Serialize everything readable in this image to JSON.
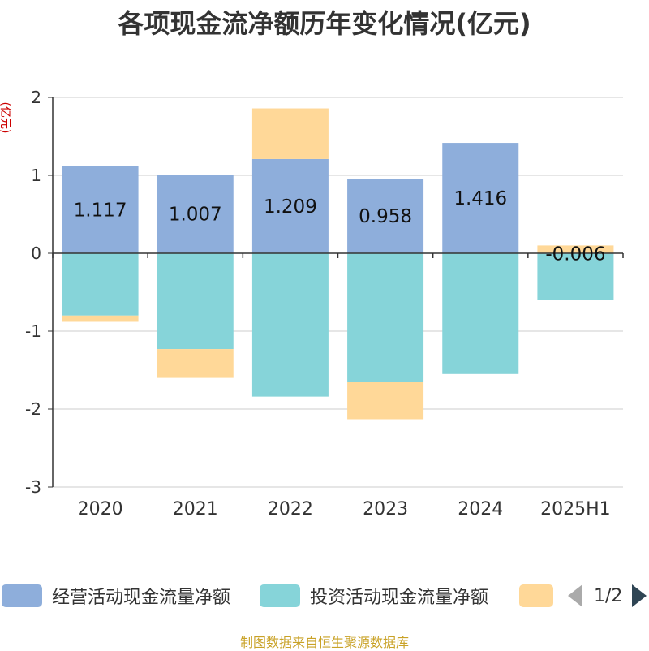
{
  "chart_data": {
    "type": "bar",
    "stacked": true,
    "title": "各项现金流净额历年变化情况(亿元)",
    "ylabel": "(亿元)",
    "ylim": [
      -3,
      2
    ],
    "yticks": [
      2,
      1,
      0,
      -1,
      -2,
      -3
    ],
    "categories": [
      "2020",
      "2021",
      "2022",
      "2023",
      "2024",
      "2025H1"
    ],
    "series": [
      {
        "name": "经营活动现金流量净额",
        "color": "#8eaedb",
        "values": [
          1.117,
          1.007,
          1.209,
          0.958,
          1.416,
          -0.006
        ],
        "labels": [
          "1.117",
          "1.007",
          "1.209",
          "0.958",
          "1.416",
          "-0.006"
        ]
      },
      {
        "name": "投资活动现金流量净额",
        "color": "#86d4d9",
        "values": [
          -0.8,
          -1.23,
          -1.84,
          -1.65,
          -1.55,
          -0.59
        ]
      },
      {
        "name": "",
        "color": "#ffd898",
        "values": [
          -0.08,
          -0.37,
          0.65,
          -0.48,
          0.0,
          0.1
        ]
      }
    ],
    "legend": {
      "position": "bottom",
      "page": "1/2"
    },
    "grid": true
  },
  "source_note": "制图数据来自恒生聚源数据库"
}
